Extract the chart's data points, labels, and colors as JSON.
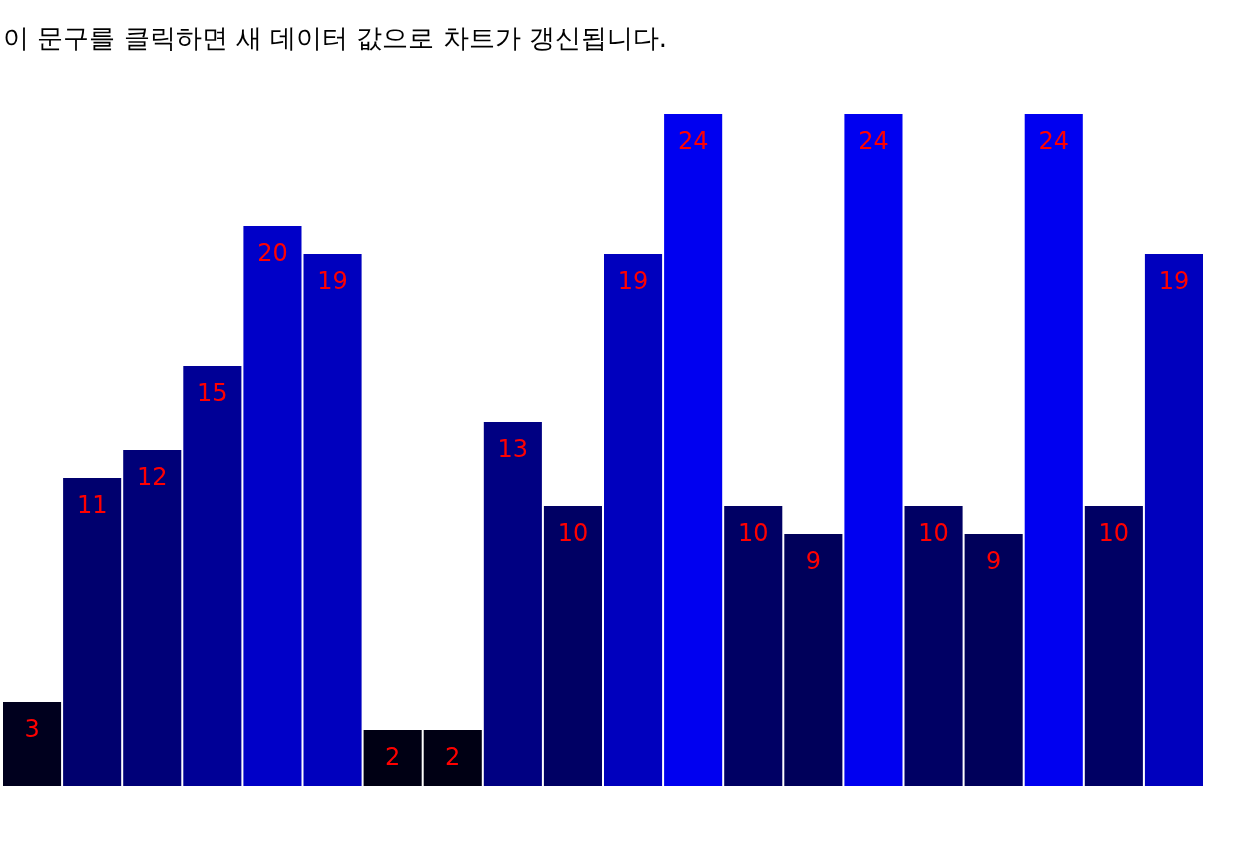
{
  "chart_data": {
    "type": "bar",
    "title": "이 문구를 클릭하면 새 데이터 값으로 차트가 갱신됩니다.",
    "categories": [
      null,
      null,
      null,
      null,
      null,
      null,
      null,
      null,
      null,
      null,
      null,
      null,
      null,
      null,
      null,
      null,
      null,
      null,
      null,
      null
    ],
    "values": [
      3,
      11,
      12,
      15,
      20,
      19,
      2,
      2,
      13,
      10,
      19,
      24,
      10,
      9,
      24,
      10,
      9,
      24,
      10,
      19
    ],
    "colors": [
      "#00001e",
      "#00006e",
      "#000078",
      "#000096",
      "#0000c8",
      "#0000be",
      "#000014",
      "#000014",
      "#000082",
      "#000064",
      "#0000be",
      "#0000f0",
      "#000064",
      "#00005a",
      "#0000f0",
      "#000064",
      "#00005a",
      "#0000f0",
      "#000064",
      "#0000be"
    ],
    "data_labels": true,
    "tick_labels": false,
    "grid": false
  }
}
